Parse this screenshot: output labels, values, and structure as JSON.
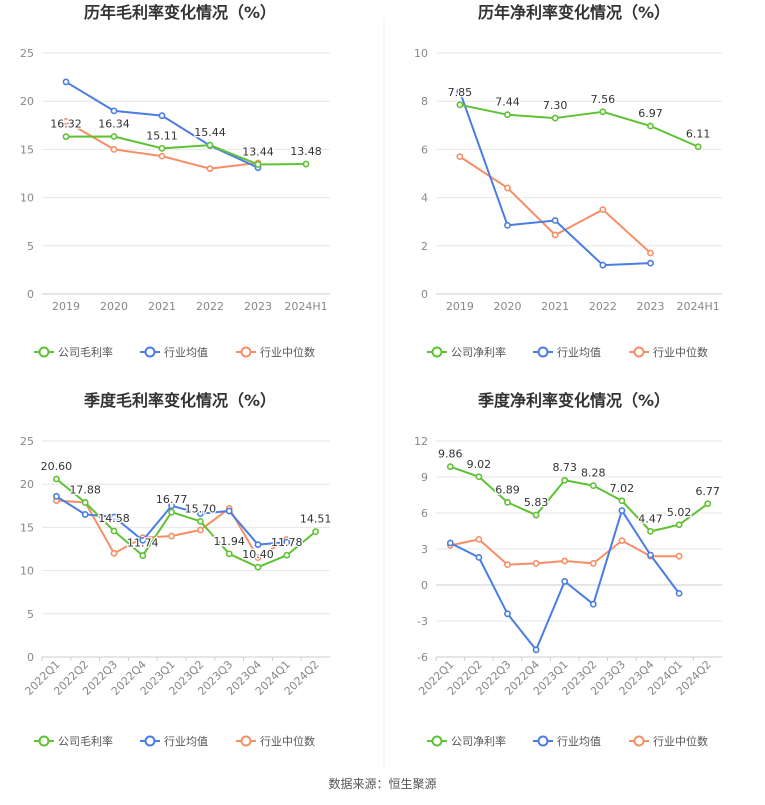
{
  "colors": {
    "company": "#5ec233",
    "industry_avg": "#4a7de3",
    "industry_median": "#f68e66",
    "axis_text": "#888888",
    "grid": "#e6e6e6",
    "title": "#333333",
    "label": "#333333"
  },
  "legend": {
    "company_gross": "公司毛利率",
    "company_net": "公司净利率",
    "industry_avg": "行业均值",
    "industry_median": "行业中位数"
  },
  "source": "数据来源：恒生聚源",
  "chart_data": [
    {
      "type": "line",
      "title": "历年毛利率变化情况（%）",
      "categories": [
        "2019",
        "2020",
        "2021",
        "2022",
        "2023",
        "2024H1"
      ],
      "ylim": [
        0,
        25
      ],
      "yticks": [
        "0",
        "5",
        "10",
        "15",
        "20",
        "25"
      ],
      "rotate_x": false,
      "legend_company": "公司毛利率",
      "series": [
        {
          "name": "公司毛利率",
          "role": "company",
          "values": [
            16.32,
            16.34,
            15.11,
            15.44,
            13.44,
            13.48
          ],
          "labels": [
            "16.32",
            "16.34",
            "15.11",
            "15.44",
            "13.44",
            "13.48"
          ]
        },
        {
          "name": "行业均值",
          "role": "avg",
          "values": [
            22.0,
            19.0,
            18.5,
            15.4,
            13.1,
            null
          ]
        },
        {
          "name": "行业中位数",
          "role": "median",
          "values": [
            17.9,
            15.0,
            14.3,
            13.0,
            13.6,
            null
          ]
        }
      ]
    },
    {
      "type": "line",
      "title": "历年净利率变化情况（%）",
      "categories": [
        "2019",
        "2020",
        "2021",
        "2022",
        "2023",
        "2024H1"
      ],
      "ylim": [
        0,
        10
      ],
      "yticks": [
        "0",
        "2",
        "4",
        "6",
        "8",
        "10"
      ],
      "rotate_x": false,
      "legend_company": "公司净利率",
      "series": [
        {
          "name": "公司净利率",
          "role": "company",
          "values": [
            7.85,
            7.44,
            7.3,
            7.56,
            6.97,
            6.11
          ],
          "labels": [
            "7.85",
            "7.44",
            "7.30",
            "7.56",
            "6.97",
            "6.11"
          ]
        },
        {
          "name": "行业均值",
          "role": "avg",
          "values": [
            8.4,
            2.85,
            3.05,
            1.2,
            1.28,
            null
          ]
        },
        {
          "name": "行业中位数",
          "role": "median",
          "values": [
            5.7,
            4.4,
            2.45,
            3.5,
            1.7,
            null
          ]
        }
      ]
    },
    {
      "type": "line",
      "title": "季度毛利率变化情况（%）",
      "categories": [
        "2022Q1",
        "2022Q2",
        "2022Q3",
        "2022Q4",
        "2023Q1",
        "2023Q2",
        "2023Q3",
        "2023Q4",
        "2024Q1",
        "2024Q2"
      ],
      "ylim": [
        0,
        25
      ],
      "yticks": [
        "0",
        "5",
        "10",
        "15",
        "20",
        "25"
      ],
      "rotate_x": true,
      "legend_company": "公司毛利率",
      "series": [
        {
          "name": "公司毛利率",
          "role": "company",
          "values": [
            20.6,
            17.88,
            14.58,
            11.74,
            16.77,
            15.7,
            11.94,
            10.4,
            11.78,
            14.51
          ],
          "labels": [
            "20.60",
            "17.88",
            "14.58",
            "11.74",
            "16.77",
            "15.70",
            "11.94",
            "10.40",
            "11.78",
            "14.51"
          ]
        },
        {
          "name": "行业均值",
          "role": "avg",
          "values": [
            18.6,
            16.5,
            16.2,
            13.5,
            17.5,
            16.6,
            16.9,
            13.0,
            13.3,
            null
          ]
        },
        {
          "name": "行业中位数",
          "role": "median",
          "values": [
            18.1,
            17.9,
            12.0,
            13.8,
            14.0,
            14.7,
            17.2,
            11.5,
            13.6,
            null
          ]
        }
      ]
    },
    {
      "type": "line",
      "title": "季度净利率变化情况（%）",
      "categories": [
        "2022Q1",
        "2022Q2",
        "2022Q3",
        "2022Q4",
        "2023Q1",
        "2023Q2",
        "2023Q3",
        "2023Q4",
        "2024Q1",
        "2024Q2"
      ],
      "ylim": [
        -6,
        12
      ],
      "yticks": [
        "-6",
        "-3",
        "0",
        "3",
        "6",
        "9",
        "12"
      ],
      "rotate_x": true,
      "legend_company": "公司净利率",
      "series": [
        {
          "name": "公司净利率",
          "role": "company",
          "values": [
            9.86,
            9.02,
            6.89,
            5.83,
            8.73,
            8.28,
            7.02,
            4.47,
            5.02,
            6.77
          ],
          "labels": [
            "9.86",
            "9.02",
            "6.89",
            "5.83",
            "8.73",
            "8.28",
            "7.02",
            "4.47",
            "5.02",
            "6.77"
          ]
        },
        {
          "name": "行业均值",
          "role": "avg",
          "values": [
            3.5,
            2.3,
            -2.4,
            -5.4,
            0.3,
            -1.6,
            6.2,
            2.5,
            -0.7,
            null
          ]
        },
        {
          "name": "行业中位数",
          "role": "median",
          "values": [
            3.3,
            3.8,
            1.7,
            1.8,
            2.0,
            1.8,
            3.7,
            2.4,
            2.4,
            null
          ]
        }
      ]
    }
  ]
}
